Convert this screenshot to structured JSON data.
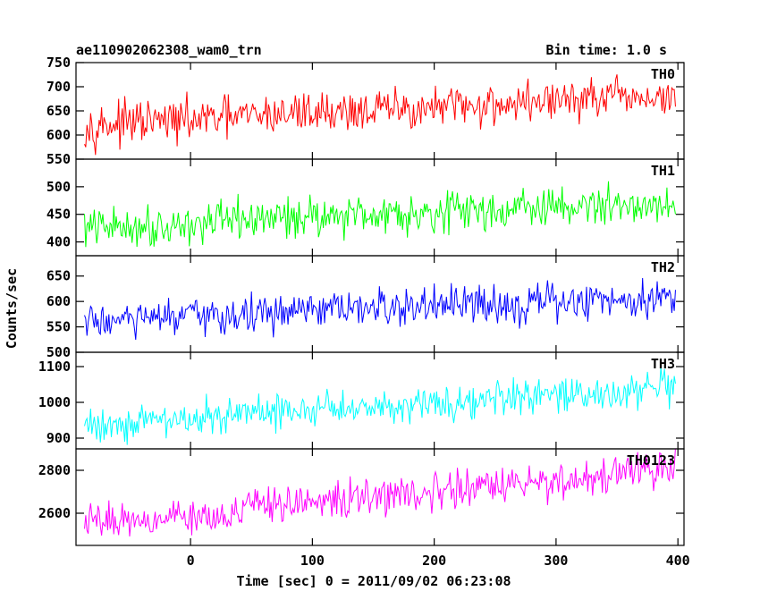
{
  "header": {
    "title": "ae110902062308_wam0_trn",
    "bin_time": "Bin time: 1.0 s"
  },
  "chart_data": {
    "type": "line",
    "title": "ae110902062308_wam0_trn",
    "subtitle": "Bin time: 1.0 s",
    "xlabel": "Time [sec] 0 = 2011/09/02 06:23:08",
    "ylabel": "Counts/sec",
    "xlim": [
      -94,
      405
    ],
    "x_ticks": [
      0,
      100,
      200,
      300,
      400
    ],
    "x_tick_labels": [
      "0",
      "100",
      "200",
      "300",
      "400"
    ],
    "x_start": -87,
    "x_end": 398,
    "x_step": 1,
    "grid": false,
    "panels": [
      {
        "name": "TH0",
        "color": "#ff0000",
        "ylim": [
          550,
          750
        ],
        "y_ticks": [
          550,
          600,
          650,
          700,
          750
        ],
        "y_tick_labels": [
          "550",
          "600",
          "650",
          "700",
          "750"
        ],
        "trend": [
          [
            -87,
            620
          ],
          [
            0,
            630
          ],
          [
            100,
            648
          ],
          [
            200,
            655
          ],
          [
            300,
            672
          ],
          [
            398,
            678
          ]
        ],
        "noise_amplitude": 32
      },
      {
        "name": "TH1",
        "color": "#00ff00",
        "ylim": [
          375,
          550
        ],
        "y_ticks": [
          400,
          450,
          500
        ],
        "y_tick_labels": [
          "400",
          "450",
          "500"
        ],
        "trend": [
          [
            -87,
            425
          ],
          [
            0,
            432
          ],
          [
            100,
            448
          ],
          [
            200,
            455
          ],
          [
            300,
            462
          ],
          [
            398,
            470
          ]
        ],
        "noise_amplitude": 27
      },
      {
        "name": "TH2",
        "color": "#0000ff",
        "ylim": [
          500,
          690
        ],
        "y_ticks": [
          500,
          550,
          600,
          650
        ],
        "y_tick_labels": [
          "500",
          "550",
          "600",
          "650"
        ],
        "trend": [
          [
            -87,
            560
          ],
          [
            0,
            568
          ],
          [
            100,
            580
          ],
          [
            200,
            590
          ],
          [
            300,
            598
          ],
          [
            398,
            610
          ]
        ],
        "noise_amplitude": 28
      },
      {
        "name": "TH3",
        "color": "#00ffff",
        "ylim": [
          870,
          1140
        ],
        "y_ticks": [
          900,
          1000,
          1100
        ],
        "y_tick_labels": [
          "900",
          "1000",
          "1100"
        ],
        "trend": [
          [
            -87,
            935
          ],
          [
            0,
            955
          ],
          [
            100,
            980
          ],
          [
            200,
            1000
          ],
          [
            300,
            1015
          ],
          [
            398,
            1040
          ]
        ],
        "noise_amplitude": 38
      },
      {
        "name": "TH0123",
        "color": "#ff00ff",
        "ylim": [
          2450,
          2900
        ],
        "y_ticks": [
          2600,
          2800
        ],
        "y_tick_labels": [
          "2600",
          "2800"
        ],
        "trend": [
          [
            -87,
            2560
          ],
          [
            0,
            2590
          ],
          [
            100,
            2650
          ],
          [
            200,
            2700
          ],
          [
            300,
            2750
          ],
          [
            398,
            2810
          ]
        ],
        "noise_amplitude": 62
      }
    ]
  }
}
